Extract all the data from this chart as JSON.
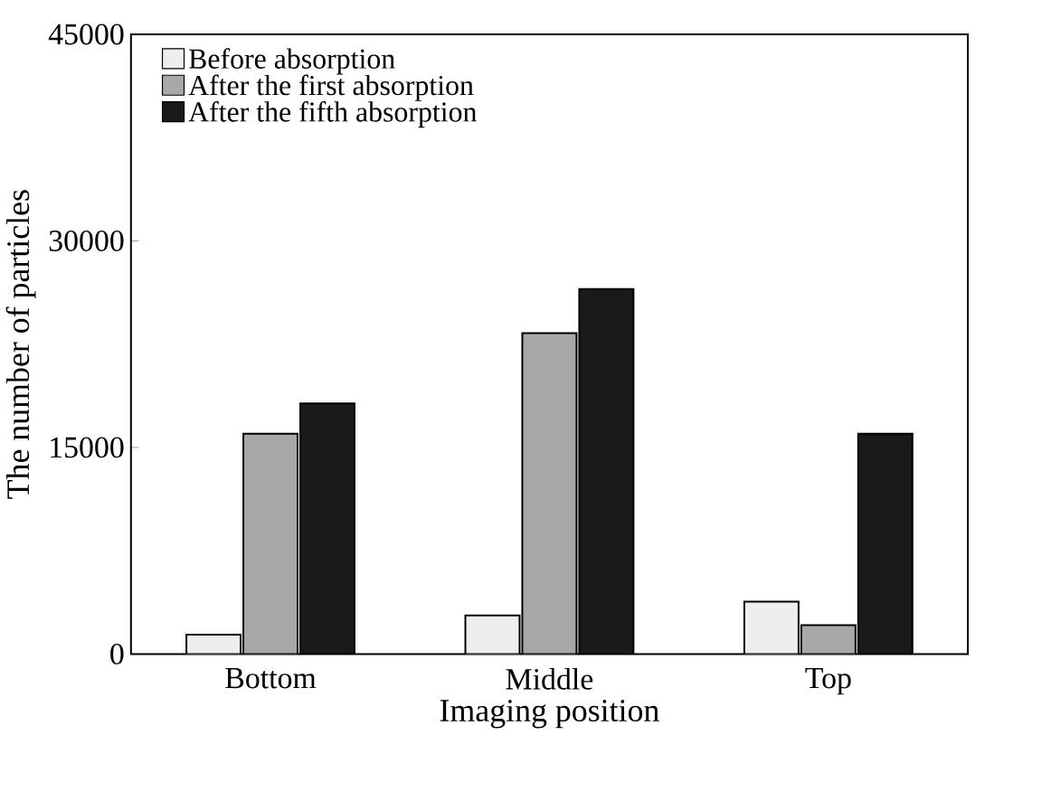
{
  "chart_data": {
    "type": "bar",
    "xlabel": "Imaging position",
    "ylabel": "The number of particles",
    "categories": [
      "Bottom",
      "Middle",
      "Top"
    ],
    "series": [
      {
        "name": "Before absorption",
        "color": "#eeeeee",
        "values": [
          1400,
          2800,
          3800
        ]
      },
      {
        "name": "After the first absorption",
        "color": "#a8a8a8",
        "values": [
          16000,
          23300,
          2100
        ]
      },
      {
        "name": "After the fifth absorption",
        "color": "#1a1a1a",
        "values": [
          18200,
          26500,
          16000
        ]
      }
    ],
    "ylim": [
      0,
      45000
    ],
    "yticks": [
      0,
      15000,
      30000,
      45000
    ],
    "legend": "top left"
  }
}
